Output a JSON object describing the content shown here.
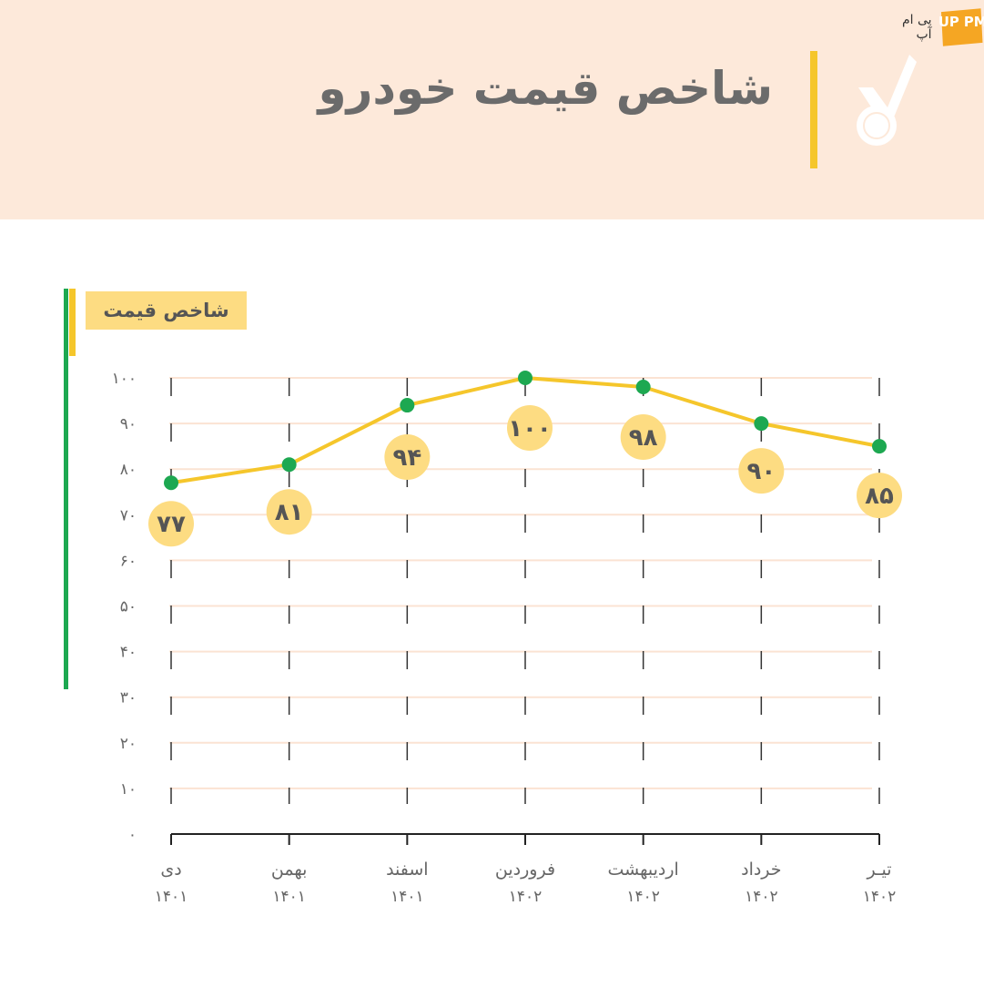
{
  "brand": {
    "name": "پی ام آپ",
    "logo_text": "UP PM"
  },
  "header": {
    "title": "شاخص قیمت خودرو",
    "icon": "check-badge-icon"
  },
  "legend": {
    "label": "شاخص قیمت"
  },
  "colors": {
    "header_bg": "#fde9da",
    "accent_yellow": "#f5c62b",
    "line": "#f5c62b",
    "point": "#1da851",
    "label_bubble": "#fddc82",
    "grid": "#fbe3d3"
  },
  "chart_data": {
    "type": "line",
    "title": "شاخص قیمت خودرو",
    "ylabel": "شاخص قیمت",
    "xlabel": "",
    "ylim": [
      0,
      100
    ],
    "yticks": [
      "۰",
      "۱۰",
      "۲۰",
      "۳۰",
      "۴۰",
      "۵۰",
      "۶۰",
      "۷۰",
      "۸۰",
      "۹۰",
      "۱۰۰"
    ],
    "categories": [
      {
        "month": "دی",
        "year": "۱۴۰۱"
      },
      {
        "month": "بهمن",
        "year": "۱۴۰۱"
      },
      {
        "month": "اسفند",
        "year": "۱۴۰۱"
      },
      {
        "month": "فروردین",
        "year": "۱۴۰۲"
      },
      {
        "month": "اردیبهشت",
        "year": "۱۴۰۲"
      },
      {
        "month": "خرداد",
        "year": "۱۴۰۲"
      },
      {
        "month": "تیـر",
        "year": "۱۴۰۲"
      }
    ],
    "values": [
      77,
      81,
      94,
      100,
      98,
      90,
      85
    ],
    "value_labels": [
      "۷۷",
      "۸۱",
      "۹۴",
      "۱۰۰",
      "۹۸",
      "۹۰",
      "۸۵"
    ],
    "grid": true
  }
}
